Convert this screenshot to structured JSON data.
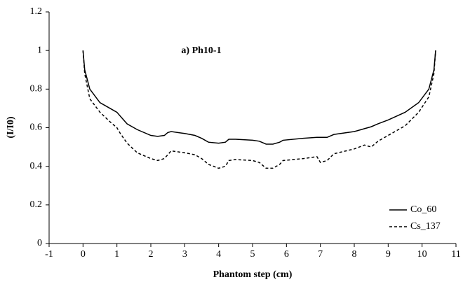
{
  "chart_data": {
    "type": "line",
    "annotation": "a) Ph10-1",
    "x_label": "Phantom step (cm)",
    "y_label": "(I/I0)",
    "x": [
      0,
      0.05,
      0.2,
      0.5,
      0.8,
      1.0,
      1.1,
      1.3,
      1.6,
      2.0,
      2.2,
      2.4,
      2.5,
      2.6,
      3.0,
      3.3,
      3.5,
      3.7,
      4.0,
      4.2,
      4.3,
      4.5,
      5.0,
      5.2,
      5.4,
      5.6,
      5.8,
      5.9,
      6.5,
      6.9,
      7.0,
      7.2,
      7.4,
      8.0,
      8.3,
      8.5,
      8.7,
      9.0,
      9.5,
      9.9,
      10.2,
      10.35,
      10.4
    ],
    "series": [
      {
        "name": "Co_60",
        "color": "#000000",
        "dash": "solid",
        "values": [
          1.0,
          0.9,
          0.8,
          0.73,
          0.7,
          0.68,
          0.66,
          0.62,
          0.59,
          0.56,
          0.555,
          0.56,
          0.575,
          0.58,
          0.57,
          0.56,
          0.545,
          0.525,
          0.52,
          0.525,
          0.54,
          0.54,
          0.535,
          0.53,
          0.515,
          0.515,
          0.525,
          0.535,
          0.545,
          0.55,
          0.55,
          0.55,
          0.565,
          0.58,
          0.595,
          0.605,
          0.62,
          0.64,
          0.68,
          0.73,
          0.8,
          0.9,
          1.0
        ]
      },
      {
        "name": "Cs_137",
        "color": "#000000",
        "dash": "dashed",
        "values": [
          1.0,
          0.88,
          0.75,
          0.68,
          0.63,
          0.6,
          0.57,
          0.52,
          0.47,
          0.44,
          0.43,
          0.44,
          0.46,
          0.48,
          0.47,
          0.46,
          0.44,
          0.41,
          0.39,
          0.4,
          0.43,
          0.435,
          0.43,
          0.42,
          0.39,
          0.39,
          0.41,
          0.43,
          0.44,
          0.45,
          0.42,
          0.43,
          0.465,
          0.49,
          0.51,
          0.5,
          0.53,
          0.56,
          0.61,
          0.68,
          0.76,
          0.88,
          1.0
        ]
      }
    ],
    "xlim": [
      -1,
      11
    ],
    "xticks": [
      -1,
      0,
      1,
      2,
      3,
      4,
      5,
      6,
      7,
      8,
      9,
      10,
      11
    ],
    "ylim": [
      0,
      1.2
    ],
    "yticks": [
      0,
      0.2,
      0.4,
      0.6,
      0.8,
      1,
      1.2
    ],
    "legend": "lower right",
    "grid": false
  }
}
